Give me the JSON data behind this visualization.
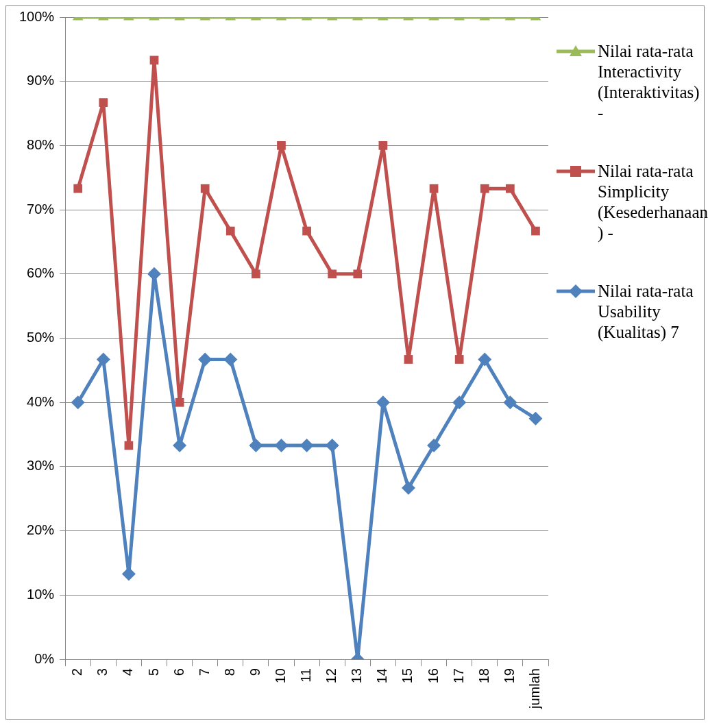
{
  "chart_data": {
    "type": "line",
    "categories": [
      "2",
      "3",
      "4",
      "5",
      "6",
      "7",
      "8",
      "9",
      "10",
      "11",
      "12",
      "13",
      "14",
      "15",
      "16",
      "17",
      "18",
      "19",
      "jumlah"
    ],
    "series": [
      {
        "name": "Nilai rata-rata Interactivity (Interaktivitas) -",
        "color": "#9bbb59",
        "marker": "triangle",
        "values": [
          100,
          100,
          100,
          100,
          100,
          100,
          100,
          100,
          100,
          100,
          100,
          100,
          100,
          100,
          100,
          100,
          100,
          100,
          100
        ]
      },
      {
        "name": "Nilai rata-rata Simplicity (Kesederhanaan ) -",
        "color": "#c0504d",
        "marker": "square",
        "values": [
          73.3,
          86.7,
          33.3,
          93.3,
          40,
          73.3,
          66.7,
          60,
          80,
          66.7,
          60,
          60,
          80,
          46.7,
          73.3,
          46.7,
          73.3,
          73.3,
          66.7
        ]
      },
      {
        "name": "Nilai rata-rata Usability (Kualitas) 7",
        "color": "#4f81bd",
        "marker": "diamond",
        "values": [
          40,
          46.7,
          13.3,
          60,
          33.3,
          46.7,
          46.7,
          33.3,
          33.3,
          33.3,
          33.3,
          0,
          40,
          26.7,
          33.3,
          40,
          46.7,
          40,
          37.5
        ]
      }
    ],
    "ylim": [
      0,
      100
    ],
    "yticks": [
      {
        "value": 0,
        "label": "0%"
      },
      {
        "value": 10,
        "label": "10%"
      },
      {
        "value": 20,
        "label": "20%"
      },
      {
        "value": 30,
        "label": "30%"
      },
      {
        "value": 40,
        "label": "40%"
      },
      {
        "value": 50,
        "label": "50%"
      },
      {
        "value": 60,
        "label": "60%"
      },
      {
        "value": 70,
        "label": "70%"
      },
      {
        "value": 80,
        "label": "80%"
      },
      {
        "value": 90,
        "label": "90%"
      },
      {
        "value": 100,
        "label": "100%"
      }
    ],
    "grid": "y",
    "legend": "right",
    "line_style": "solid"
  }
}
